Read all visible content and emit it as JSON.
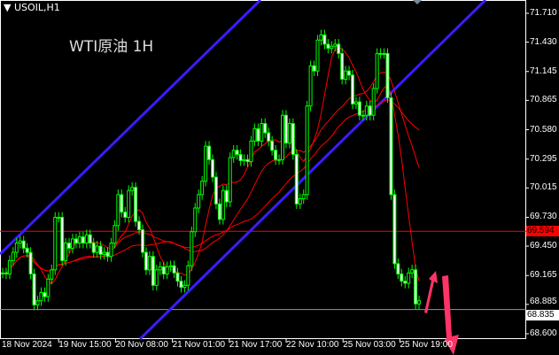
{
  "header": {
    "symbol": "USOIL,H1",
    "title": "WTI原油 1H"
  },
  "colors": {
    "background": "#000000",
    "candle": "#00ff00",
    "channel": "#3a1cff",
    "ma": "#ff0000",
    "bid_line": "#ff0000",
    "ask_line": "#8899aa",
    "arrow": "#ff3366"
  },
  "chart_data": {
    "type": "candlestick",
    "title": "WTI原油 1H",
    "ylim": [
      68.6,
      71.71
    ],
    "y_ticks": [
      "71.710",
      "71.430",
      "71.145",
      "70.865",
      "70.580",
      "70.295",
      "70.015",
      "69.730",
      "69.450",
      "69.165",
      "68.885",
      "68.600"
    ],
    "x_ticks": [
      "18 Nov 2024",
      "19 Nov 15:00",
      "20 Nov 08:00",
      "21 Nov 01:00",
      "21 Nov 17:00",
      "22 Nov 10:00",
      "25 Nov 03:00",
      "25 Nov 19:00"
    ],
    "closes": [
      69.19,
      69.18,
      69.31,
      69.39,
      69.48,
      69.5,
      69.43,
      69.39,
      69.18,
      68.88,
      68.92,
      69.0,
      68.96,
      69.13,
      69.22,
      69.73,
      69.73,
      69.31,
      69.48,
      69.43,
      69.52,
      69.48,
      69.54,
      69.48,
      69.56,
      69.48,
      69.39,
      69.45,
      69.37,
      69.39,
      69.35,
      69.48,
      69.65,
      69.95,
      69.78,
      69.73,
      69.99,
      70.02,
      69.69,
      69.61,
      69.39,
      69.22,
      69.35,
      69.07,
      69.22,
      69.25,
      69.18,
      69.25,
      69.26,
      69.19,
      69.11,
      69.05,
      69.07,
      69.26,
      69.59,
      69.82,
      69.95,
      70.08,
      70.42,
      70.29,
      70.12,
      69.86,
      69.71,
      69.99,
      69.88,
      70.31,
      70.38,
      70.34,
      70.28,
      70.29,
      70.27,
      70.47,
      70.59,
      70.47,
      70.64,
      70.55,
      70.47,
      70.38,
      70.29,
      70.29,
      70.72,
      70.45,
      70.64,
      70.34,
      69.86,
      69.91,
      69.95,
      70.81,
      71.2,
      71.15,
      71.45,
      71.5,
      71.41,
      71.37,
      71.39,
      71.41,
      71.32,
      71.07,
      71.15,
      71.11,
      70.83,
      70.85,
      70.72,
      70.72,
      70.81,
      70.72,
      70.98,
      71.32,
      71.32,
      71.32,
      70.89,
      69.95,
      69.28,
      69.18,
      69.11,
      69.09,
      69.19,
      69.22,
      68.89,
      68.92
    ],
    "horizontal_lines": [
      {
        "price": 69.594,
        "label": "69.594",
        "color": "#ff0000"
      },
      {
        "price": 68.835,
        "label": "68.835",
        "color": "#ffffff"
      }
    ]
  }
}
